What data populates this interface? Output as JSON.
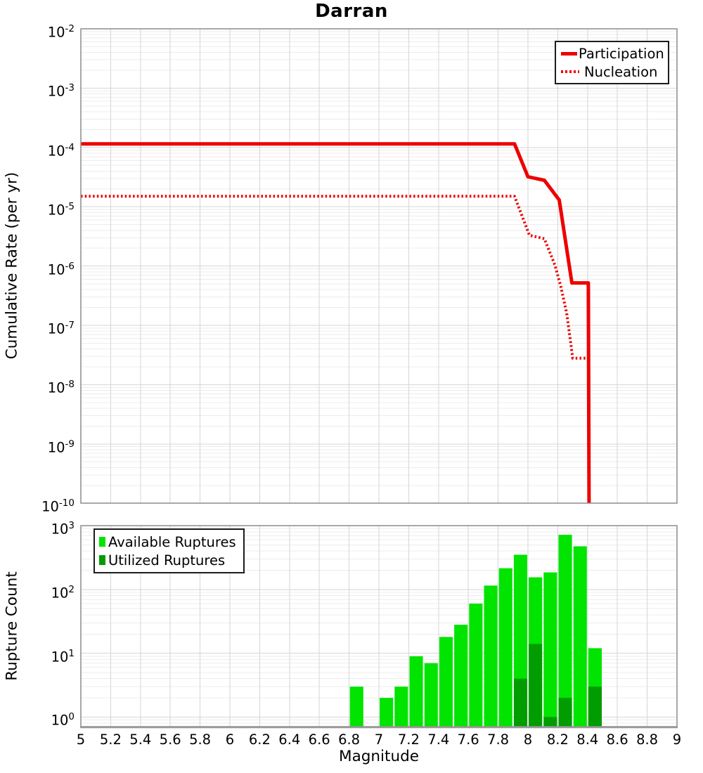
{
  "title": "Darran",
  "colors": {
    "line_red": "#ee0000",
    "available_green": "#00e400",
    "utilized_green": "#009c00",
    "grid_major": "#d6d6d6",
    "grid_minor": "#ececec",
    "panel_border": "#8c8c8c",
    "axis_line": "#999999"
  },
  "top_panel": {
    "ylabel": "Cumulative Rate (per yr)",
    "y_ticks": [
      -2,
      -3,
      -4,
      -5,
      -6,
      -7,
      -8,
      -9,
      -10
    ],
    "legend": [
      {
        "label": "Participation",
        "style": "solid"
      },
      {
        "label": "Nucleation",
        "style": "dotted"
      }
    ]
  },
  "bottom_panel": {
    "ylabel": "Rupture Count",
    "y_ticks": [
      0,
      1,
      2,
      3
    ],
    "legend": [
      {
        "label": "Available Ruptures",
        "swatch": "available_green"
      },
      {
        "label": "Utilized Ruptures",
        "swatch": "utilized_green"
      }
    ]
  },
  "x_axis": {
    "label": "Magnitude",
    "tick_values": [
      5,
      5.2,
      5.4,
      5.6,
      5.8,
      6,
      6.2,
      6.4,
      6.6,
      6.8,
      7,
      7.2,
      7.4,
      7.6,
      7.8,
      8,
      8.2,
      8.4,
      8.6,
      8.8,
      9
    ],
    "tick_labels": [
      "5",
      "5.2",
      "5.4",
      "5.6",
      "5.8",
      "6",
      "6.2",
      "6.4",
      "6.6",
      "6.8",
      "7",
      "7.2",
      "7.4",
      "7.6",
      "7.8",
      "8",
      "8.2",
      "8.4",
      "8.6",
      "8.8",
      "9"
    ]
  },
  "chart_data": [
    {
      "type": "line",
      "title": "Darran",
      "xlabel": "Magnitude",
      "ylabel": "Cumulative Rate (per yr)",
      "xlim": [
        5,
        9
      ],
      "ylim": [
        1e-10,
        0.01
      ],
      "yscale": "log",
      "grid": true,
      "legend_position": "top-right",
      "series": [
        {
          "name": "Participation",
          "style": "solid",
          "color": "#ee0000",
          "points": [
            [
              5.0,
              0.000115
            ],
            [
              7.91,
              0.000115
            ],
            [
              8.0,
              3.2e-05
            ],
            [
              8.11,
              2.8e-05
            ],
            [
              8.21,
              1.3e-05
            ],
            [
              8.295,
              5.2e-07
            ],
            [
              8.405,
              5.2e-07
            ],
            [
              8.41,
              1e-10
            ]
          ]
        },
        {
          "name": "Nucleation",
          "style": "dotted",
          "color": "#ee0000",
          "points": [
            [
              5.0,
              1.5e-05
            ],
            [
              7.91,
              1.5e-05
            ],
            [
              8.01,
              3.3e-06
            ],
            [
              8.11,
              2.9e-06
            ],
            [
              8.18,
              1.05e-06
            ],
            [
              8.22,
              4.6e-07
            ],
            [
              8.26,
              1.6e-07
            ],
            [
              8.29,
              4.4e-08
            ],
            [
              8.3,
              2.8e-08
            ],
            [
              8.405,
              2.8e-08
            ],
            [
              8.41,
              1e-10
            ]
          ]
        }
      ]
    },
    {
      "type": "bar",
      "xlabel": "Magnitude",
      "ylabel": "Rupture Count",
      "xlim": [
        5,
        9
      ],
      "ylim": [
        0.71,
        1000
      ],
      "yscale": "log",
      "bar_width": 0.09,
      "legend_position": "top-left",
      "categories": [
        6.85,
        7.05,
        7.15,
        7.25,
        7.35,
        7.45,
        7.55,
        7.65,
        7.75,
        7.85,
        7.95,
        8.05,
        8.15,
        8.25,
        8.35,
        8.45
      ],
      "series": [
        {
          "name": "Available Ruptures",
          "color": "#00e400",
          "values": [
            3,
            2,
            3,
            9,
            7,
            18,
            28,
            60,
            115,
            215,
            350,
            155,
            185,
            720,
            475,
            12
          ]
        },
        {
          "name": "Utilized Ruptures",
          "color": "#009c00",
          "values": [
            0,
            0,
            0,
            0,
            0,
            0,
            0,
            0,
            0,
            0,
            4,
            14,
            1,
            2,
            0,
            3
          ]
        }
      ]
    }
  ]
}
